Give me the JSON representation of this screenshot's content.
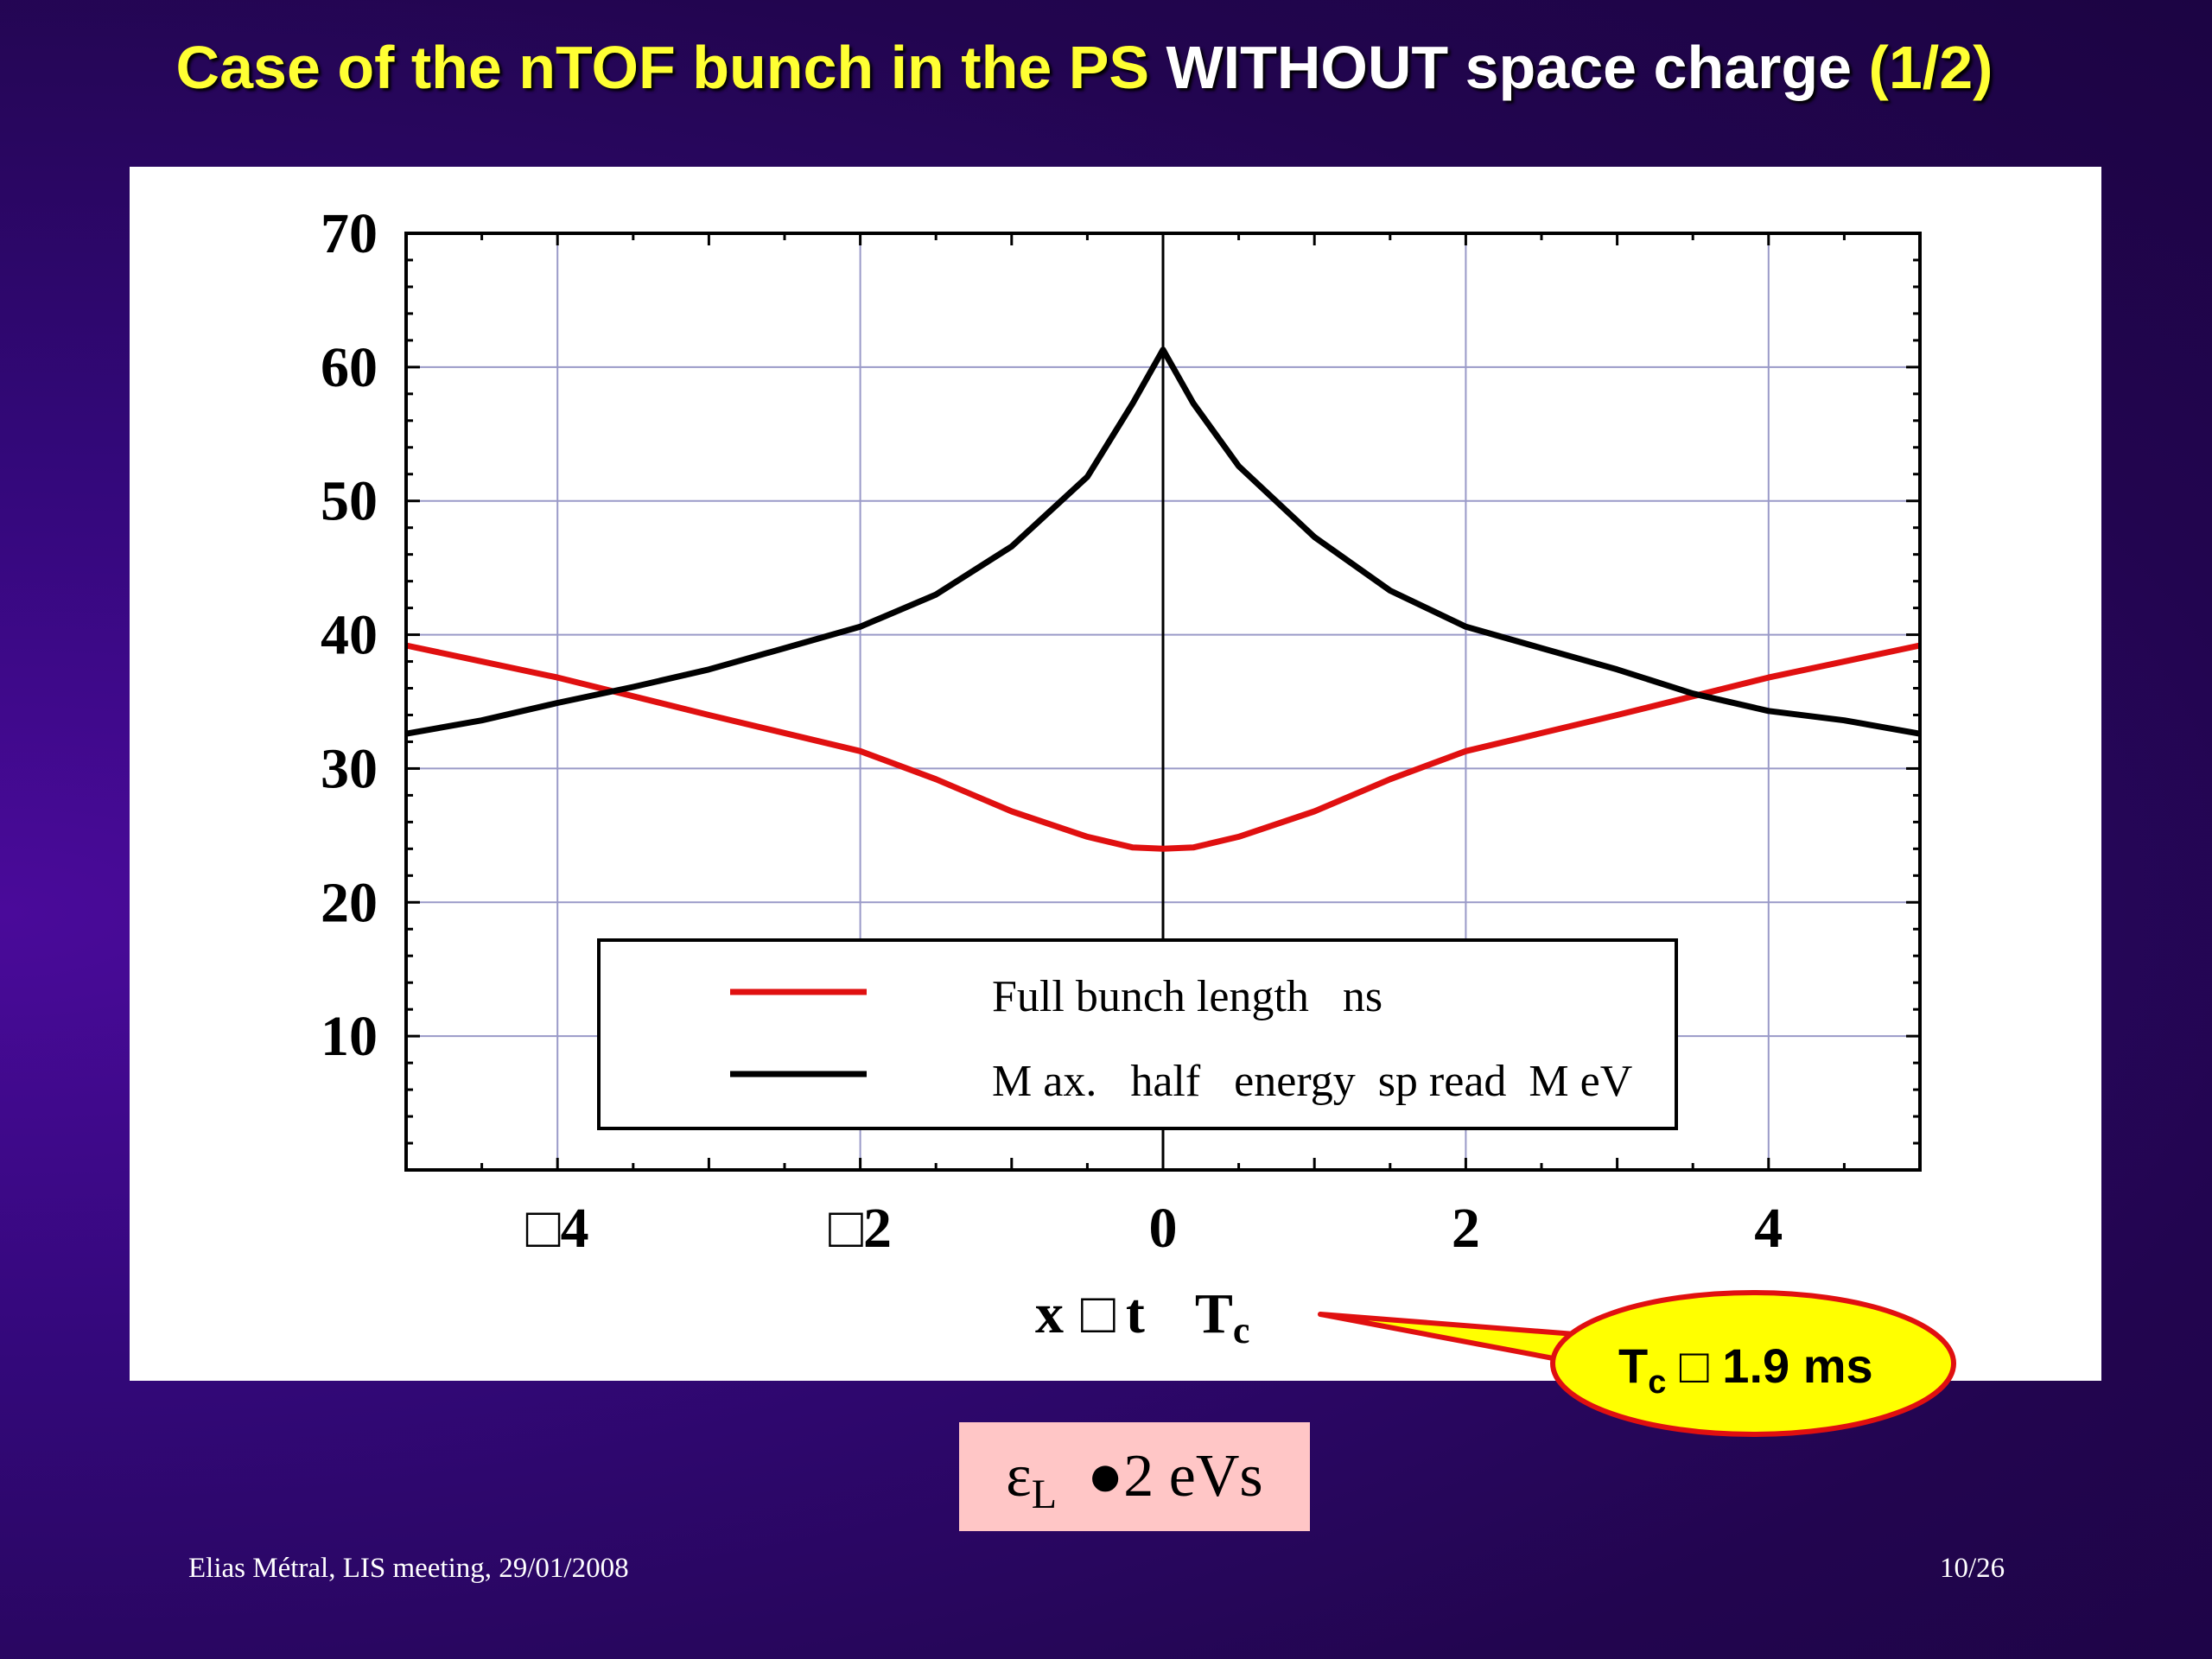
{
  "slide": {
    "title_parts": [
      "Case of the nTOF bunch in the PS ",
      "WITHOUT space charge ",
      "(1/2)"
    ],
    "footer_left": "Elias Métral, LIS meeting, 29/01/2008",
    "footer_right": "10/26",
    "epsilon_symbol": "ε",
    "epsilon_sub": "L",
    "epsilon_rest": "  ●2 eVs",
    "callout": {
      "t": "T",
      "sub": "c",
      "rest": " □ 1.9 ms"
    }
  },
  "colors": {
    "red_series": "#e01010",
    "black_series": "#000000",
    "callout_fill": "#ffff00",
    "callout_border": "#e01010"
  },
  "chart_data": {
    "type": "line",
    "xlim": [
      -5,
      5
    ],
    "ylim": [
      0,
      70
    ],
    "x_ticks": [
      {
        "value": -4,
        "label": "□4"
      },
      {
        "value": -2,
        "label": "□2"
      },
      {
        "value": 0,
        "label": "0"
      },
      {
        "value": 2,
        "label": "2"
      },
      {
        "value": 4,
        "label": "4"
      }
    ],
    "y_ticks": [
      {
        "value": 10,
        "label": "10"
      },
      {
        "value": 20,
        "label": "20"
      },
      {
        "value": 30,
        "label": "30"
      },
      {
        "value": 40,
        "label": "40"
      },
      {
        "value": 50,
        "label": "50"
      },
      {
        "value": 60,
        "label": "60"
      },
      {
        "value": 70,
        "label": "70"
      }
    ],
    "xlabel": {
      "x": "x",
      "box": "□",
      "t": "t",
      "T": "T",
      "sub": "c"
    },
    "grid": true,
    "legend_position": "bottom-center",
    "series": [
      {
        "name": "Full bunch length   ns",
        "color": "#e01010",
        "x": [
          -5,
          -4,
          -3,
          -2,
          -1.5,
          -1,
          -0.5,
          -0.2,
          0,
          0.2,
          0.5,
          1,
          1.5,
          2,
          3,
          4,
          5
        ],
        "y": [
          39.2,
          36.8,
          34,
          31.3,
          29.2,
          26.8,
          24.9,
          24.1,
          24,
          24.1,
          24.9,
          26.8,
          29.2,
          31.3,
          34,
          36.8,
          39.2
        ]
      },
      {
        "name": "M ax.   half   energy  sp read  M eV",
        "color": "#000000",
        "x": [
          -5,
          -4.5,
          -4,
          -3.5,
          -3,
          -2.5,
          -2,
          -1.5,
          -1,
          -0.5,
          -0.2,
          0,
          0.2,
          0.5,
          1,
          1.5,
          2,
          2.5,
          3,
          3.5,
          4,
          4.5,
          5
        ],
        "y": [
          32.6,
          33.6,
          34.9,
          36.1,
          37.4,
          39,
          40.6,
          43,
          46.6,
          51.8,
          57.3,
          61.3,
          57.3,
          52.6,
          47.3,
          43.3,
          40.6,
          39,
          37.4,
          35.6,
          34.3,
          33.6,
          32.6
        ]
      }
    ]
  }
}
